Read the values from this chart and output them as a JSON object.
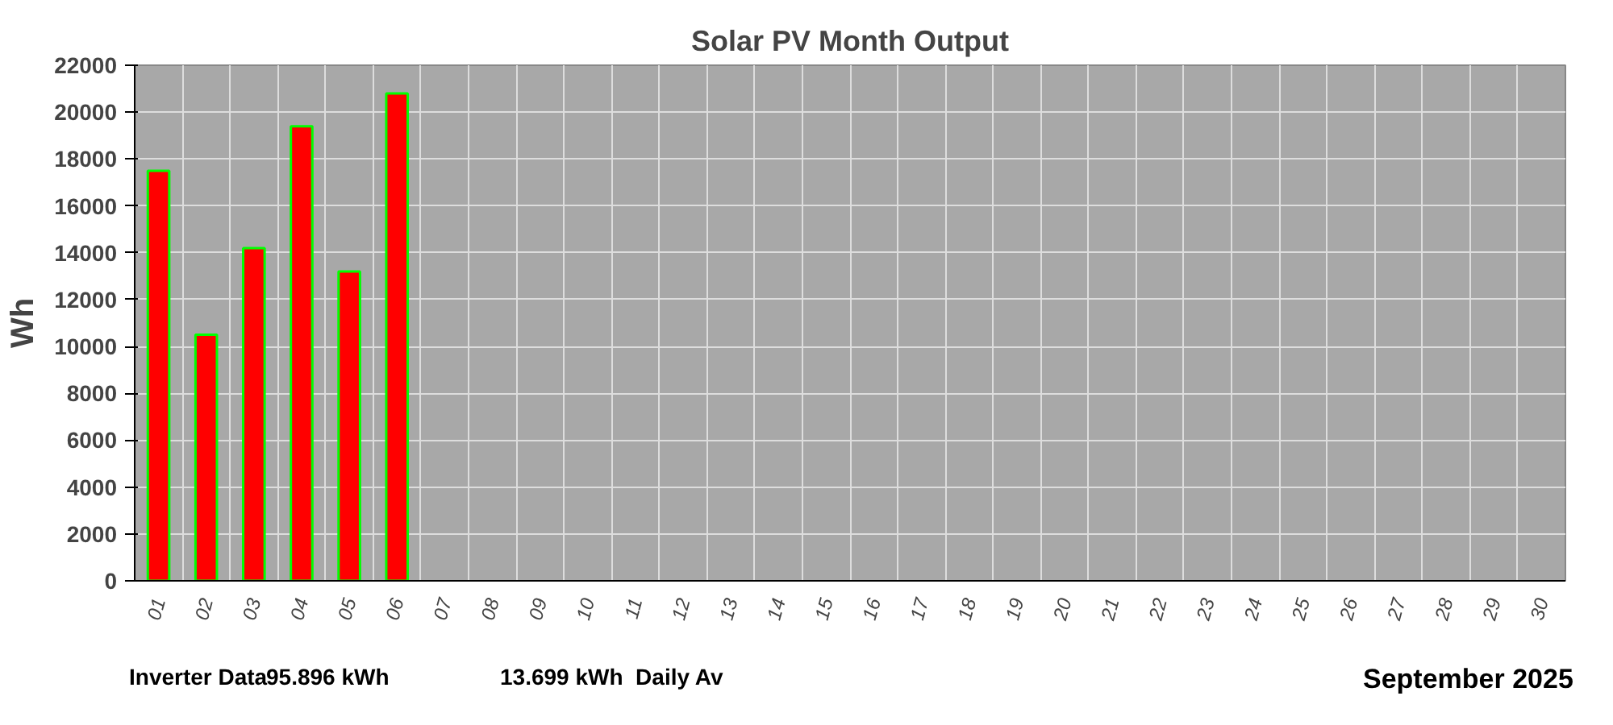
{
  "chart_data": {
    "type": "bar",
    "title": "Solar PV Month Output",
    "ylabel": "Wh",
    "categories": [
      "01",
      "02",
      "03",
      "04",
      "05",
      "06",
      "07",
      "08",
      "09",
      "10",
      "11",
      "12",
      "13",
      "14",
      "15",
      "16",
      "17",
      "18",
      "19",
      "20",
      "21",
      "22",
      "23",
      "24",
      "25",
      "26",
      "27",
      "28",
      "29",
      "30"
    ],
    "values": [
      17500,
      10500,
      14200,
      19400,
      13200,
      20800,
      null,
      null,
      null,
      null,
      null,
      null,
      null,
      null,
      null,
      null,
      null,
      null,
      null,
      null,
      null,
      null,
      null,
      null,
      null,
      null,
      null,
      null,
      null,
      null
    ],
    "color": "#ff0000",
    "ylim": [
      0,
      22000
    ],
    "yticks": [
      0,
      2000,
      4000,
      6000,
      8000,
      10000,
      12000,
      14000,
      16000,
      18000,
      20000,
      22000
    ],
    "grid": true,
    "annotations": [
      "Inverter Data",
      "95.896 kWh",
      "13.699 kWh  Daily Av",
      "September 2025"
    ]
  }
}
